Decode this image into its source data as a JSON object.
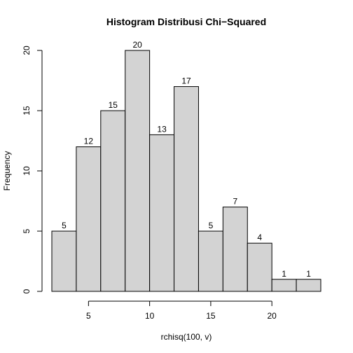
{
  "chart_data": {
    "type": "bar",
    "title": "Histogram Distribusi Chi−Squared",
    "xlabel": "rchisq(100, v)",
    "ylabel": "Frequency",
    "bins": [
      {
        "start": 2,
        "end": 4,
        "count": 5
      },
      {
        "start": 4,
        "end": 6,
        "count": 12
      },
      {
        "start": 6,
        "end": 8,
        "count": 15
      },
      {
        "start": 8,
        "end": 10,
        "count": 20
      },
      {
        "start": 10,
        "end": 12,
        "count": 13
      },
      {
        "start": 12,
        "end": 14,
        "count": 17
      },
      {
        "start": 14,
        "end": 16,
        "count": 5
      },
      {
        "start": 16,
        "end": 18,
        "count": 7
      },
      {
        "start": 18,
        "end": 20,
        "count": 4
      },
      {
        "start": 20,
        "end": 22,
        "count": 1
      },
      {
        "start": 22,
        "end": 24,
        "count": 1
      }
    ],
    "xlim": [
      2,
      24
    ],
    "ylim": [
      0,
      20
    ],
    "x_ticks": [
      5,
      10,
      15,
      20
    ],
    "y_ticks": [
      0,
      5,
      10,
      15,
      20
    ],
    "bar_color": "#d3d3d3",
    "bar_border_color": "#000000",
    "grid": false,
    "legend": "none"
  }
}
